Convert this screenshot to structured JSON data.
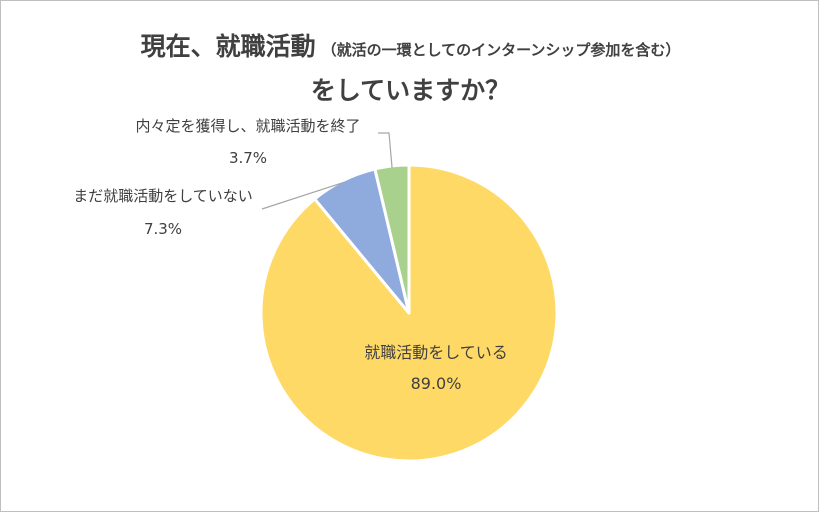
{
  "chart_data": {
    "type": "pie",
    "title_main": "現在、就職活動",
    "title_sub": "（就活の一環としてのインターンシップ参加を含む）",
    "title_line2": "をしていますか？",
    "start_angle_deg": 0,
    "direction": "clockwise",
    "slices": [
      {
        "label": "就職活動をしている",
        "value": 89.0,
        "value_label": "89.0%",
        "color": "#FFD966"
      },
      {
        "label": "まだ就職活動をしていない",
        "value": 7.3,
        "value_label": "7.3%",
        "color": "#8FAADC"
      },
      {
        "label": "内々定を獲得し、就職活動を終了",
        "value": 3.7,
        "value_label": "3.7%",
        "color": "#A9D18E"
      }
    ],
    "legend": "none"
  }
}
